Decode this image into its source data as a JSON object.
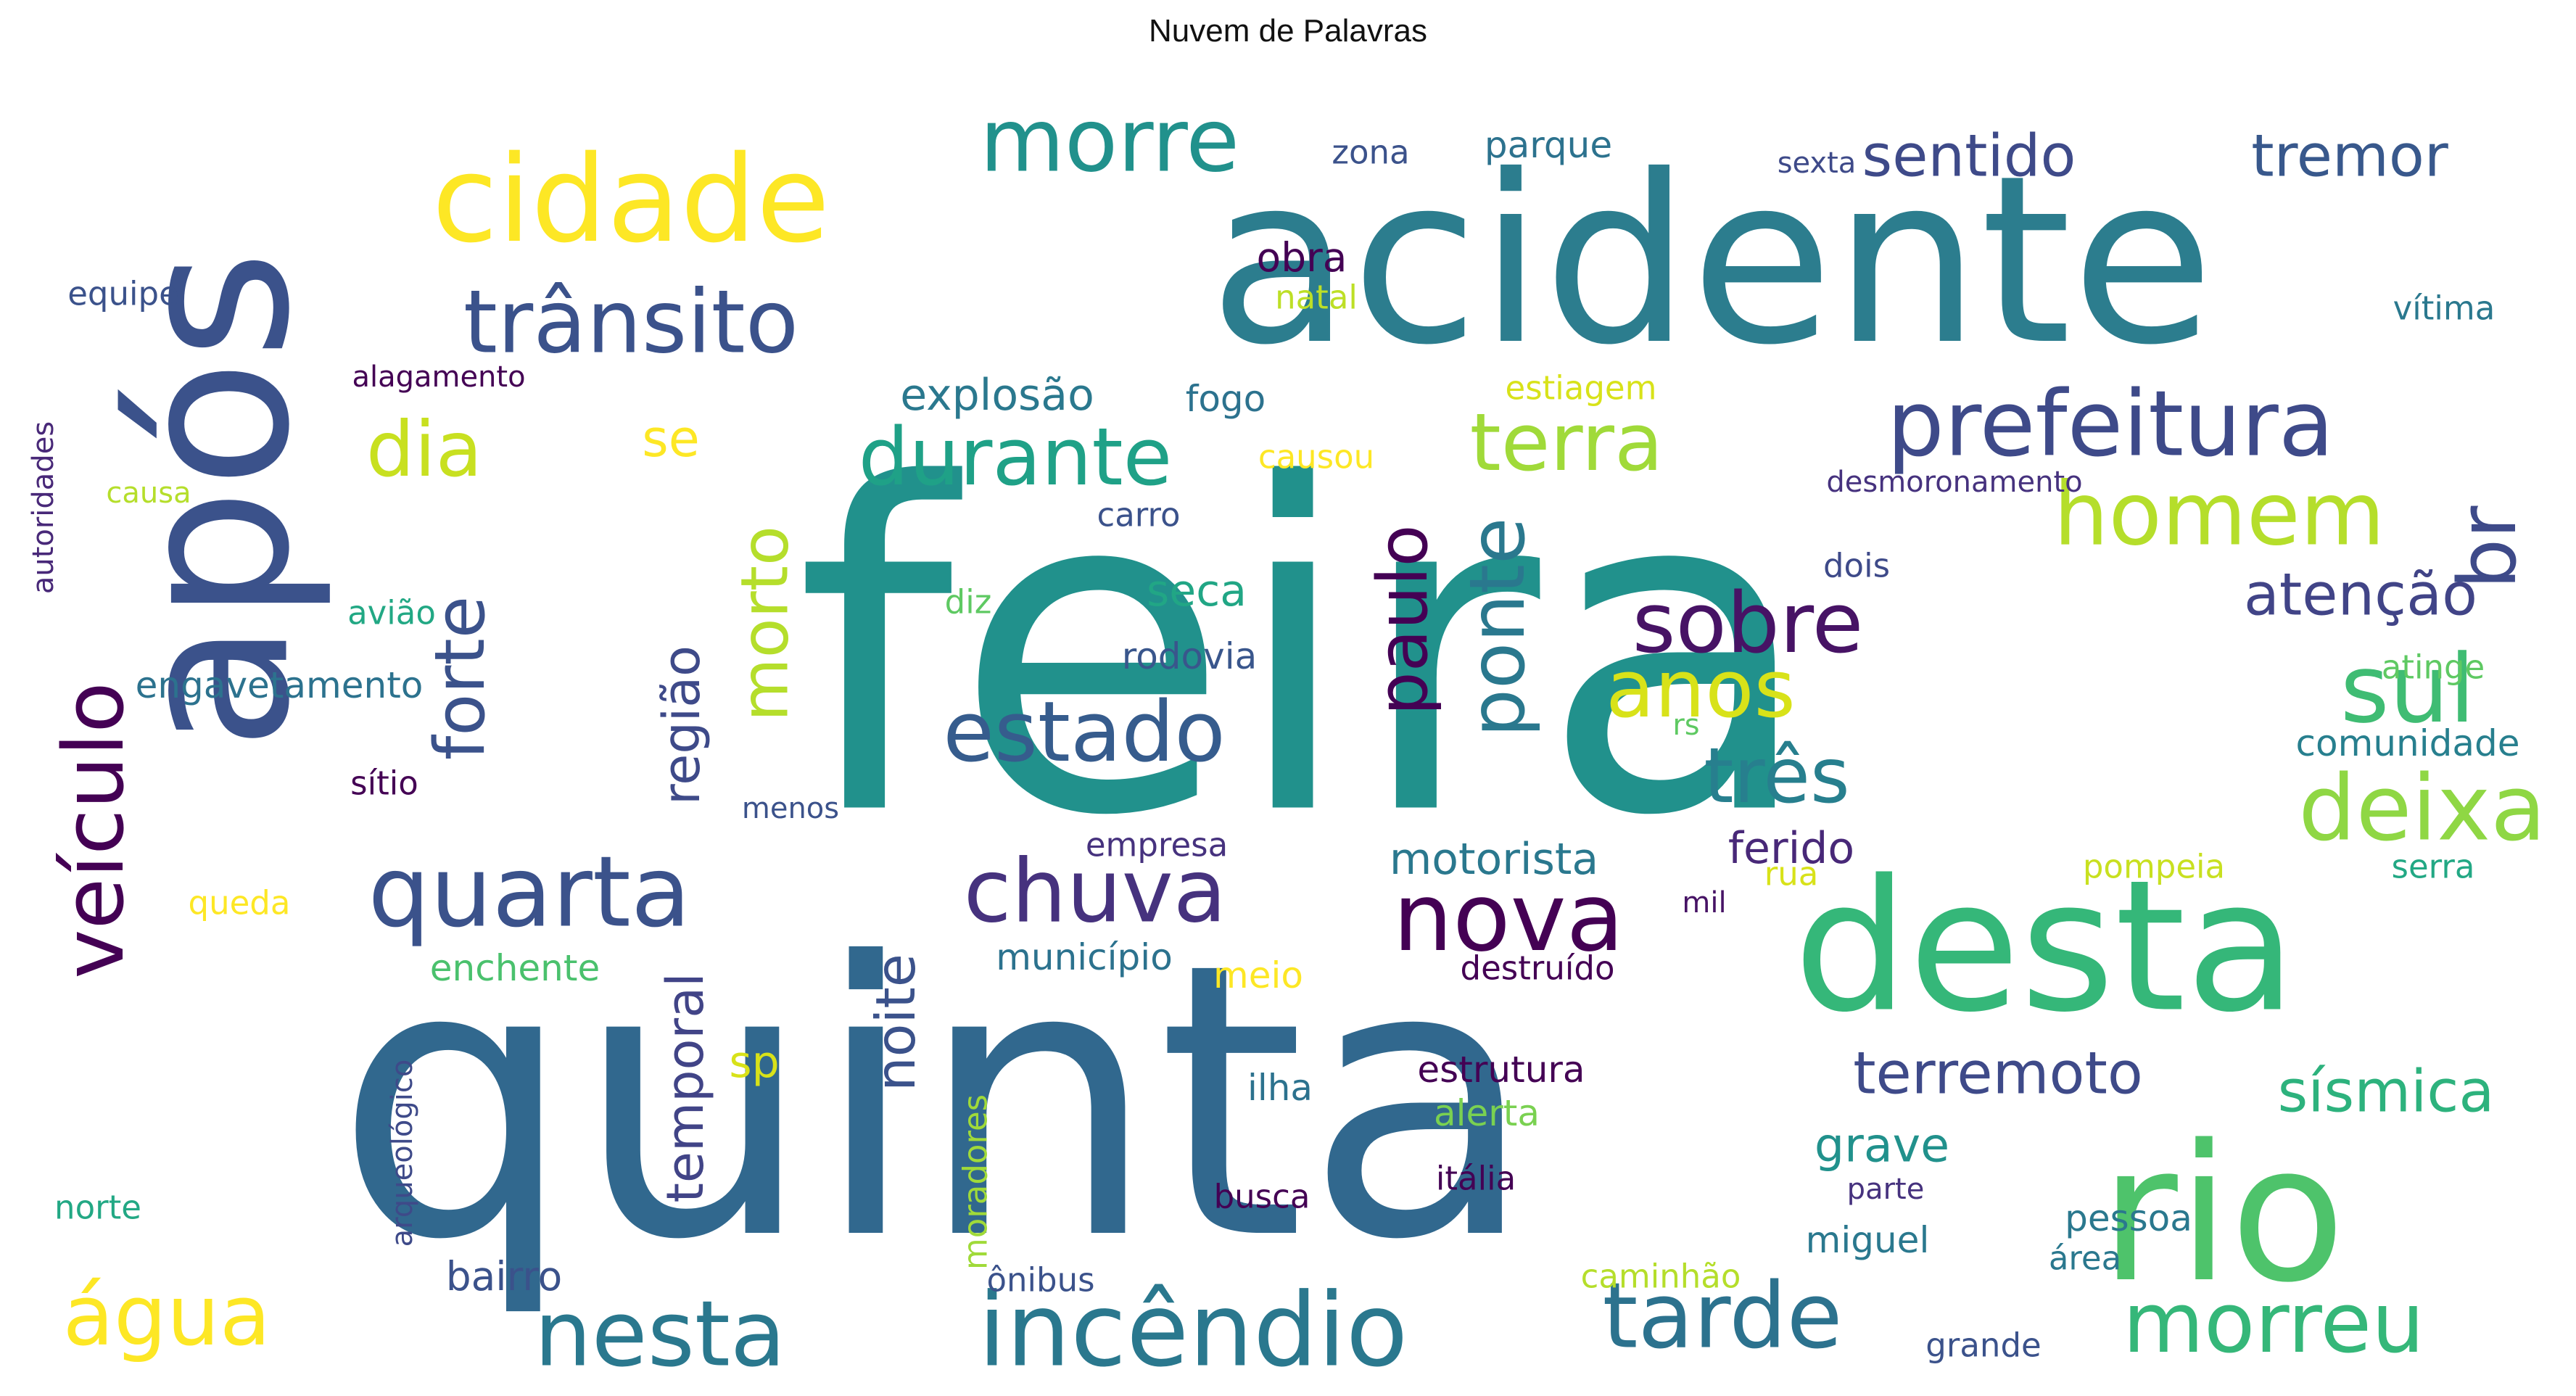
{
  "title": "Nuvem de Palavras",
  "words": [
    {
      "text": "feira",
      "color": "#21918c"
    },
    {
      "text": "quinta",
      "color": "#31688e"
    },
    {
      "text": "acidente",
      "color": "#2c7d8e"
    },
    {
      "text": "após",
      "color": "#3b528b"
    },
    {
      "text": "desta",
      "color": "#35b779"
    },
    {
      "text": "rio",
      "color": "#4ec36b"
    },
    {
      "text": "cidade",
      "color": "#fde725"
    },
    {
      "text": "trânsito",
      "color": "#3b528b"
    },
    {
      "text": "morre",
      "color": "#21918c"
    },
    {
      "text": "prefeitura",
      "color": "#3e4a89"
    },
    {
      "text": "durante",
      "color": "#1fa187"
    },
    {
      "text": "terra",
      "color": "#a0da39"
    },
    {
      "text": "dia",
      "color": "#c8e020"
    },
    {
      "text": "quarta",
      "color": "#3b528b"
    },
    {
      "text": "veículo",
      "color": "#440154"
    },
    {
      "text": "forte",
      "color": "#3b528b"
    },
    {
      "text": "chuva",
      "color": "#46327e"
    },
    {
      "text": "nova",
      "color": "#440154"
    },
    {
      "text": "estado",
      "color": "#365c8d"
    },
    {
      "text": "morto",
      "color": "#b5de2b"
    },
    {
      "text": "paulo",
      "color": "#440154"
    },
    {
      "text": "ponte",
      "color": "#2a788e"
    },
    {
      "text": "sobre",
      "color": "#471365"
    },
    {
      "text": "anos",
      "color": "#d8e219"
    },
    {
      "text": "três",
      "color": "#277f8e"
    },
    {
      "text": "homem",
      "color": "#b5de2b"
    },
    {
      "text": "br",
      "color": "#3e4a89"
    },
    {
      "text": "atenção",
      "color": "#414487"
    },
    {
      "text": "sul",
      "color": "#3fbc73"
    },
    {
      "text": "deixa",
      "color": "#8fd744"
    },
    {
      "text": "nesta",
      "color": "#2a788e"
    },
    {
      "text": "incêndio",
      "color": "#2a788e"
    },
    {
      "text": "tarde",
      "color": "#2c728e"
    },
    {
      "text": "morreu",
      "color": "#35b779"
    },
    {
      "text": "água",
      "color": "#fde725"
    },
    {
      "text": "sentido",
      "color": "#3e4a89"
    },
    {
      "text": "tremor",
      "color": "#38588c"
    },
    {
      "text": "se",
      "color": "#fde725"
    },
    {
      "text": "explosão",
      "color": "#2a788e"
    },
    {
      "text": "obra",
      "color": "#440154"
    },
    {
      "text": "natal",
      "color": "#bddf26"
    },
    {
      "text": "zona",
      "color": "#3b528b"
    },
    {
      "text": "parque",
      "color": "#2c728e"
    },
    {
      "text": "sexta",
      "color": "#3e4a89"
    },
    {
      "text": "equipe",
      "color": "#3b528b"
    },
    {
      "text": "vítima",
      "color": "#2a788e"
    },
    {
      "text": "alagamento",
      "color": "#440154"
    },
    {
      "text": "fogo",
      "color": "#2c728e"
    },
    {
      "text": "estiagem",
      "color": "#d8e219"
    },
    {
      "text": "causou",
      "color": "#fde725"
    },
    {
      "text": "autoridades",
      "color": "#482878"
    },
    {
      "text": "causa",
      "color": "#b5de2b"
    },
    {
      "text": "carro",
      "color": "#3b528b"
    },
    {
      "text": "desmoronamento",
      "color": "#46327e"
    },
    {
      "text": "seca",
      "color": "#21a685"
    },
    {
      "text": "dois",
      "color": "#3e4a89"
    },
    {
      "text": "diz",
      "color": "#5ec962"
    },
    {
      "text": "avião",
      "color": "#22a884"
    },
    {
      "text": "rodovia",
      "color": "#39568c"
    },
    {
      "text": "engavetamento",
      "color": "#2c728e"
    },
    {
      "text": "atinge",
      "color": "#5ec962"
    },
    {
      "text": "região",
      "color": "#3e4a89"
    },
    {
      "text": "rs",
      "color": "#5ec962"
    },
    {
      "text": "comunidade",
      "color": "#277f8e"
    },
    {
      "text": "sítio",
      "color": "#440154"
    },
    {
      "text": "menos",
      "color": "#3b528b"
    },
    {
      "text": "empresa",
      "color": "#46327e"
    },
    {
      "text": "motorista",
      "color": "#2a788e"
    },
    {
      "text": "ferido",
      "color": "#482878"
    },
    {
      "text": "queda",
      "color": "#fde725"
    },
    {
      "text": "pompeia",
      "color": "#c8e020"
    },
    {
      "text": "serra",
      "color": "#22a884"
    },
    {
      "text": "temporal",
      "color": "#414487"
    },
    {
      "text": "noite",
      "color": "#3b528b"
    },
    {
      "text": "rua",
      "color": "#d8e219"
    },
    {
      "text": "mil",
      "color": "#471365"
    },
    {
      "text": "enchente",
      "color": "#4ac16d"
    },
    {
      "text": "município",
      "color": "#2c728e"
    },
    {
      "text": "meio",
      "color": "#fde725"
    },
    {
      "text": "destruído",
      "color": "#440154"
    },
    {
      "text": "terremoto",
      "color": "#3e4a89"
    },
    {
      "text": "sísmica",
      "color": "#2db27d"
    },
    {
      "text": "sp",
      "color": "#d8e219"
    },
    {
      "text": "arqueológico",
      "color": "#3e4a89"
    },
    {
      "text": "moradores",
      "color": "#a0da39"
    },
    {
      "text": "ilha",
      "color": "#2c728e"
    },
    {
      "text": "estrutura",
      "color": "#440154"
    },
    {
      "text": "alerta",
      "color": "#7ad151"
    },
    {
      "text": "grave",
      "color": "#21918c"
    },
    {
      "text": "parte",
      "color": "#46327e"
    },
    {
      "text": "norte",
      "color": "#22a884"
    },
    {
      "text": "busca",
      "color": "#440154"
    },
    {
      "text": "itália",
      "color": "#440154"
    },
    {
      "text": "miguel",
      "color": "#2a788e"
    },
    {
      "text": "pessoa",
      "color": "#2a788e"
    },
    {
      "text": "área",
      "color": "#2a788e"
    },
    {
      "text": "bairro",
      "color": "#3b528b"
    },
    {
      "text": "ônibus",
      "color": "#3b528b"
    },
    {
      "text": "caminhão",
      "color": "#b5de2b"
    },
    {
      "text": "grande",
      "color": "#3b528b"
    }
  ]
}
